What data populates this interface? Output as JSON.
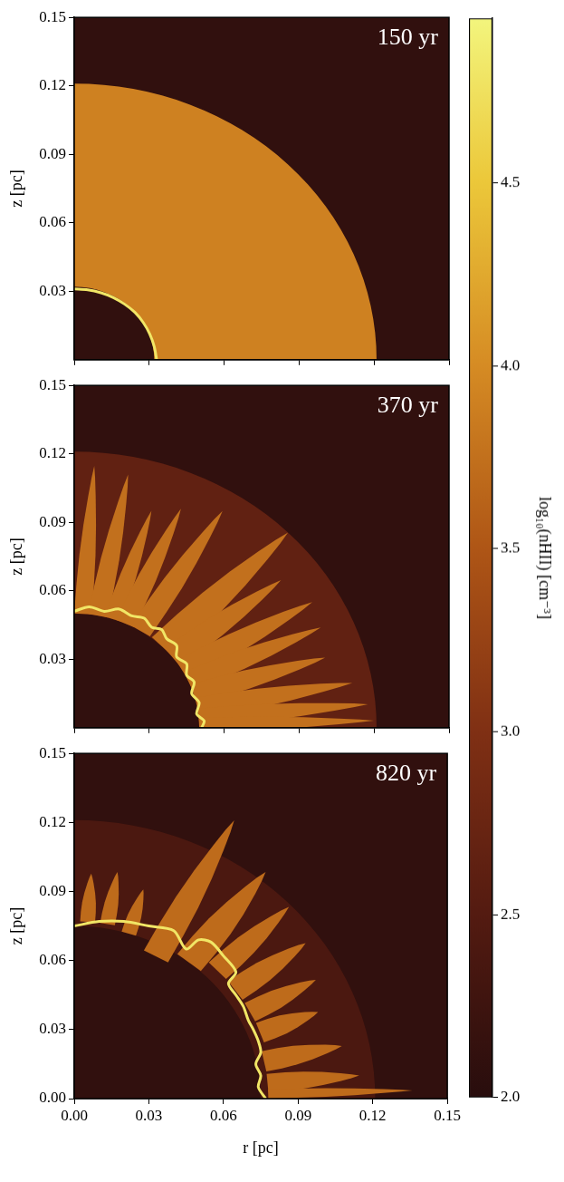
{
  "chart_data": [
    {
      "type": "heatmap",
      "title": "150 yr",
      "y_label": "z [pc]",
      "tick_labels": "y",
      "xlim": [
        0,
        0.15
      ],
      "ylim": [
        0,
        0.15
      ],
      "xticks": [
        {
          "value": 0,
          "label": "0.00"
        },
        0.03,
        0.06,
        0.09,
        0.12,
        0.15
      ],
      "yticks": [
        0.03,
        0.06,
        0.09,
        0.12,
        0.15
      ],
      "background": 2.1,
      "shells": [
        {
          "r_inner": 0.032,
          "r_outer": 0.121,
          "value": 3.9
        }
      ],
      "finger_value": 3.8,
      "fingers": [],
      "front": {
        "value": 4.8,
        "points": [
          [
            0,
            0.031
          ],
          [
            0.0054,
            0.0306
          ],
          [
            0.0107,
            0.0293
          ],
          [
            0.0157,
            0.0272
          ],
          [
            0.0202,
            0.0243
          ],
          [
            0.0243,
            0.0207
          ],
          [
            0.0276,
            0.0163
          ],
          [
            0.0302,
            0.0113
          ],
          [
            0.032,
            0.0058
          ],
          [
            0.033,
            0
          ]
        ]
      }
    },
    {
      "type": "heatmap",
      "title": "370 yr",
      "y_label": "z [pc]",
      "tick_labels": "y",
      "xlim": [
        0,
        0.15
      ],
      "ylim": [
        0,
        0.15
      ],
      "xticks": [
        {
          "value": 0,
          "label": "0.00"
        },
        0.03,
        0.06,
        0.09,
        0.12,
        0.15
      ],
      "yticks": [
        0.03,
        0.06,
        0.09,
        0.12,
        0.15
      ],
      "background": 2.1,
      "shells": [
        {
          "r_inner": 0.05,
          "r_outer": 0.121,
          "value": 2.65
        }
      ],
      "finger_value": 3.75,
      "fingers": [
        {
          "angle": 86,
          "r0": 0.05,
          "r1": 0.115,
          "width": 0.007
        },
        {
          "angle": 79,
          "r0": 0.05,
          "r1": 0.113,
          "width": 0.008
        },
        {
          "angle": 72,
          "r0": 0.05,
          "r1": 0.1,
          "width": 0.007
        },
        {
          "angle": 66,
          "r0": 0.05,
          "r1": 0.105,
          "width": 0.008
        },
        {
          "angle": 58,
          "r0": 0.05,
          "r1": 0.112,
          "width": 0.009
        },
        {
          "angle": 45,
          "r0": 0.05,
          "r1": 0.121,
          "width": 0.012
        },
        {
          "angle": 38,
          "r0": 0.05,
          "r1": 0.105,
          "width": 0.01
        },
        {
          "angle": 30,
          "r0": 0.05,
          "r1": 0.11,
          "width": 0.01
        },
        {
          "angle": 24,
          "r0": 0.05,
          "r1": 0.108,
          "width": 0.009
        },
        {
          "angle": 17,
          "r0": 0.05,
          "r1": 0.105,
          "width": 0.009
        },
        {
          "angle": 10,
          "r0": 0.05,
          "r1": 0.113,
          "width": 0.009
        },
        {
          "angle": 5,
          "r0": 0.05,
          "r1": 0.118,
          "width": 0.008
        },
        {
          "angle": 1.5,
          "r0": 0.05,
          "r1": 0.12,
          "width": 0.006
        }
      ],
      "front": {
        "value": 4.8,
        "points": [
          [
            0,
            0.051
          ],
          [
            0.006,
            0.053
          ],
          [
            0.012,
            0.051
          ],
          [
            0.018,
            0.052
          ],
          [
            0.023,
            0.049
          ],
          [
            0.028,
            0.048
          ],
          [
            0.031,
            0.044
          ],
          [
            0.035,
            0.043
          ],
          [
            0.037,
            0.039
          ],
          [
            0.041,
            0.036
          ],
          [
            0.041,
            0.031
          ],
          [
            0.045,
            0.028
          ],
          [
            0.045,
            0.023
          ],
          [
            0.048,
            0.02
          ],
          [
            0.047,
            0.015
          ],
          [
            0.05,
            0.011
          ],
          [
            0.049,
            0.006
          ],
          [
            0.052,
            0.003
          ],
          [
            0.051,
            0
          ]
        ]
      }
    },
    {
      "type": "heatmap",
      "title": "820 yr",
      "x_label": "r [pc]",
      "y_label": "z [pc]",
      "xlim": [
        0,
        0.15
      ],
      "ylim": [
        0,
        0.15
      ],
      "xticks": [
        {
          "value": 0,
          "label": "0.00"
        },
        0.03,
        0.06,
        0.09,
        0.12,
        0.15
      ],
      "yticks": [
        {
          "value": 0,
          "label": "0.00"
        },
        0.03,
        0.06,
        0.09,
        0.12,
        0.15
      ],
      "background": 2.1,
      "shells": [
        {
          "r_inner": 0.075,
          "r_outer": 0.121,
          "value": 2.4
        }
      ],
      "finger_value": 3.7,
      "fingers": [
        {
          "angle": 86,
          "r0": 0.077,
          "r1": 0.098,
          "width": 0.006
        },
        {
          "angle": 80,
          "r0": 0.077,
          "r1": 0.1,
          "width": 0.006
        },
        {
          "angle": 73,
          "r0": 0.075,
          "r1": 0.095,
          "width": 0.006
        },
        {
          "angle": 62,
          "r0": 0.07,
          "r1": 0.137,
          "width": 0.011
        },
        {
          "angle": 52,
          "r0": 0.075,
          "r1": 0.125,
          "width": 0.012
        },
        {
          "angle": 44,
          "r0": 0.08,
          "r1": 0.12,
          "width": 0.01
        },
        {
          "angle": 36,
          "r0": 0.08,
          "r1": 0.115,
          "width": 0.01
        },
        {
          "angle": 28,
          "r0": 0.08,
          "r1": 0.11,
          "width": 0.009
        },
        {
          "angle": 21,
          "r0": 0.08,
          "r1": 0.105,
          "width": 0.009
        },
        {
          "angle": 12,
          "r0": 0.078,
          "r1": 0.11,
          "width": 0.009
        },
        {
          "angle": 5,
          "r0": 0.078,
          "r1": 0.115,
          "width": 0.008
        },
        {
          "angle": 1.5,
          "r0": 0.078,
          "r1": 0.136,
          "width": 0.004
        }
      ],
      "front": {
        "value": 4.8,
        "points": [
          [
            0,
            0.075
          ],
          [
            0.01,
            0.077
          ],
          [
            0.02,
            0.077
          ],
          [
            0.03,
            0.075
          ],
          [
            0.04,
            0.073
          ],
          [
            0.045,
            0.065
          ],
          [
            0.05,
            0.069
          ],
          [
            0.055,
            0.068
          ],
          [
            0.06,
            0.062
          ],
          [
            0.065,
            0.055
          ],
          [
            0.062,
            0.05
          ],
          [
            0.065,
            0.045
          ],
          [
            0.068,
            0.04
          ],
          [
            0.07,
            0.034
          ],
          [
            0.072,
            0.03
          ],
          [
            0.074,
            0.025
          ],
          [
            0.075,
            0.02
          ],
          [
            0.073,
            0.015
          ],
          [
            0.075,
            0.01
          ],
          [
            0.074,
            0.005
          ],
          [
            0.077,
            0
          ]
        ]
      }
    }
  ],
  "colorbar": {
    "label": "log₁₀(nHII) [cm⁻³]",
    "range": [
      2.0,
      4.95
    ],
    "ticks": [
      {
        "value": 2,
        "label": "2.0"
      },
      2.5,
      {
        "value": 3,
        "label": "3.0"
      },
      3.5,
      {
        "value": 4,
        "label": "4.0"
      },
      4.5
    ]
  }
}
